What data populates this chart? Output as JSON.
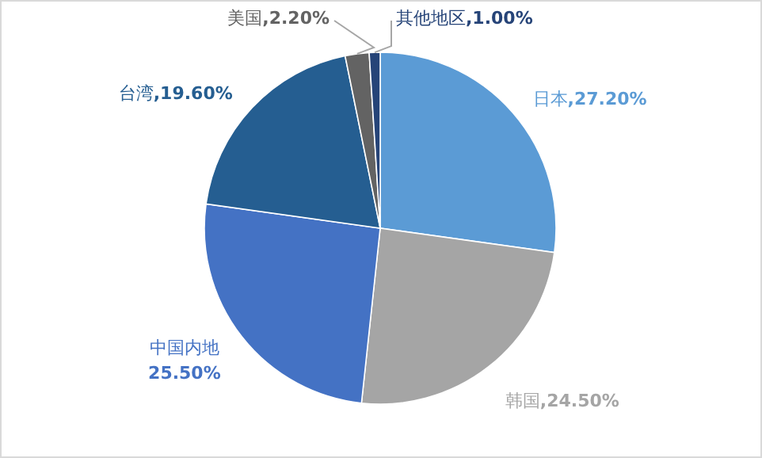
{
  "chart_data": {
    "type": "pie",
    "categories": [
      "日本",
      "韩国",
      "中国内地",
      "台湾",
      "美国",
      "其他地区"
    ],
    "values": [
      27.2,
      24.5,
      25.5,
      19.6,
      2.2,
      1.0
    ],
    "value_labels": [
      ",27.20%",
      ",24.50%",
      "25.50%",
      ",19.60%",
      ",2.20%",
      ",1.00%"
    ],
    "colors": [
      "#5b9bd5",
      "#a5a5a5",
      "#4472c4",
      "#255e91",
      "#636363",
      "#264478"
    ]
  }
}
